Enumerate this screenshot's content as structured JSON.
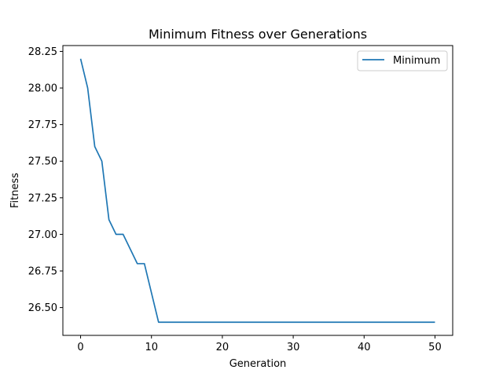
{
  "chart_data": {
    "type": "line",
    "title": "Minimum Fitness over Generations",
    "xlabel": "Generation",
    "ylabel": "Fitness",
    "xlim": [
      -2.5,
      52.5
    ],
    "ylim": [
      26.31,
      28.29
    ],
    "xticks": [
      0,
      10,
      20,
      30,
      40,
      50
    ],
    "yticks": [
      26.5,
      26.75,
      27.0,
      27.25,
      27.5,
      27.75,
      28.0,
      28.25
    ],
    "ytick_labels": [
      "26.50",
      "26.75",
      "27.00",
      "27.25",
      "27.50",
      "27.75",
      "28.00",
      "28.25"
    ],
    "grid": false,
    "legend_position": "top-right",
    "series": [
      {
        "name": "Minimum",
        "color": "#1f77b4",
        "x": [
          0,
          1,
          2,
          3,
          4,
          5,
          6,
          7,
          8,
          9,
          10,
          11,
          12,
          13,
          14,
          15,
          16,
          17,
          18,
          19,
          20,
          21,
          22,
          23,
          24,
          25,
          26,
          27,
          28,
          29,
          30,
          31,
          32,
          33,
          34,
          35,
          36,
          37,
          38,
          39,
          40,
          41,
          42,
          43,
          44,
          45,
          46,
          47,
          48,
          49,
          50
        ],
        "y": [
          28.2,
          28.0,
          27.6,
          27.5,
          27.1,
          27.0,
          27.0,
          26.9,
          26.8,
          26.8,
          26.6,
          26.4,
          26.4,
          26.4,
          26.4,
          26.4,
          26.4,
          26.4,
          26.4,
          26.4,
          26.4,
          26.4,
          26.4,
          26.4,
          26.4,
          26.4,
          26.4,
          26.4,
          26.4,
          26.4,
          26.4,
          26.4,
          26.4,
          26.4,
          26.4,
          26.4,
          26.4,
          26.4,
          26.4,
          26.4,
          26.4,
          26.4,
          26.4,
          26.4,
          26.4,
          26.4,
          26.4,
          26.4,
          26.4,
          26.4,
          26.4
        ]
      }
    ]
  }
}
